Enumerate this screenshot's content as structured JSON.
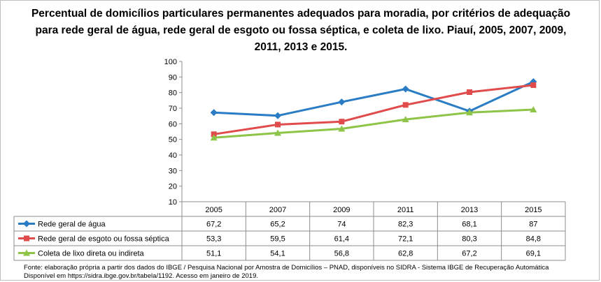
{
  "chart_data": {
    "type": "line",
    "title": "Percentual de domicílios particulares permanentes adequados para moradia, por critérios de adequação para rede geral de água, rede geral de esgoto ou fossa séptica, e coleta de lixo. Piauí, 2005, 2007, 2009, 2011, 2013 e 2015.",
    "categories": [
      "2005",
      "2007",
      "2009",
      "2011",
      "2013",
      "2015"
    ],
    "ylim": [
      10,
      100
    ],
    "yticks": [
      10,
      20,
      30,
      40,
      50,
      60,
      70,
      80,
      90,
      100
    ],
    "grid": false,
    "legend": "data-table",
    "series": [
      {
        "name": "Rede geral de água",
        "values": [
          67.2,
          65.2,
          74,
          82.3,
          68.1,
          87
        ],
        "labels": [
          "67,2",
          "65,2",
          "74",
          "82,3",
          "68,1",
          "87"
        ],
        "color": "#2a7dc4",
        "marker": "diamond"
      },
      {
        "name": "Rede geral de esgoto ou fossa séptica",
        "values": [
          53.3,
          59.5,
          61.4,
          72.1,
          80.3,
          84.8
        ],
        "labels": [
          "53,3",
          "59,5",
          "61,4",
          "72,1",
          "80,3",
          "84,8"
        ],
        "color": "#e04b4b",
        "marker": "square"
      },
      {
        "name": "Coleta de lixo direta ou indireta",
        "values": [
          51.1,
          54.1,
          56.8,
          62.8,
          67.2,
          69.1
        ],
        "labels": [
          "51,1",
          "54,1",
          "56,8",
          "62,8",
          "67,2",
          "69,1"
        ],
        "color": "#8ec448",
        "marker": "triangle"
      }
    ]
  },
  "source": {
    "line1": "Fonte: elaboração própria a partir dos dados do IBGE / Pesquisa Nacional por Amostra de Domicílios – PNAD, disponíveis no SIDRA - Sistema IBGE de Recuperação Automática",
    "line2": "Disponível em https://sidra.ibge.gov.br/tabela/1192. Acesso em janeiro de 2019."
  }
}
